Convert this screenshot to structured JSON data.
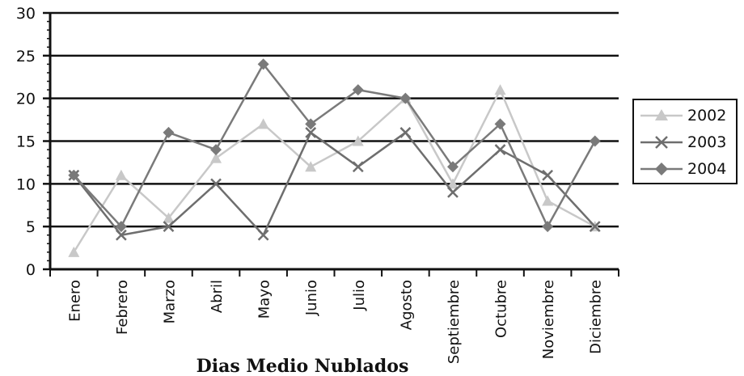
{
  "chart_data": {
    "type": "line",
    "title": "Dias Medio Nublados",
    "xlabel": "",
    "ylabel": "",
    "ylim": [
      0,
      30
    ],
    "yticks": [
      0,
      5,
      10,
      15,
      20,
      25,
      30
    ],
    "categories": [
      "Enero",
      "Febrero",
      "Marzo",
      "Abril",
      "Mayo",
      "Junio",
      "Julio",
      "Agosto",
      "Septiembre",
      "Octubre",
      "Noviembre",
      "Diciembre"
    ],
    "grid": true,
    "legend_position": "right",
    "series": [
      {
        "name": "2002",
        "marker": "triangle",
        "color": "#c8c8c8",
        "values": [
          2,
          11,
          6,
          13,
          17,
          12,
          15,
          20,
          10,
          21,
          8,
          5
        ]
      },
      {
        "name": "2003",
        "marker": "x",
        "color": "#6e6e6e",
        "values": [
          11,
          4,
          5,
          10,
          4,
          16,
          12,
          16,
          9,
          14,
          11,
          5
        ]
      },
      {
        "name": "2004",
        "marker": "diamond",
        "color": "#7a7a7a",
        "values": [
          11,
          5,
          16,
          14,
          24,
          17,
          21,
          20,
          12,
          17,
          5,
          15
        ]
      }
    ]
  }
}
